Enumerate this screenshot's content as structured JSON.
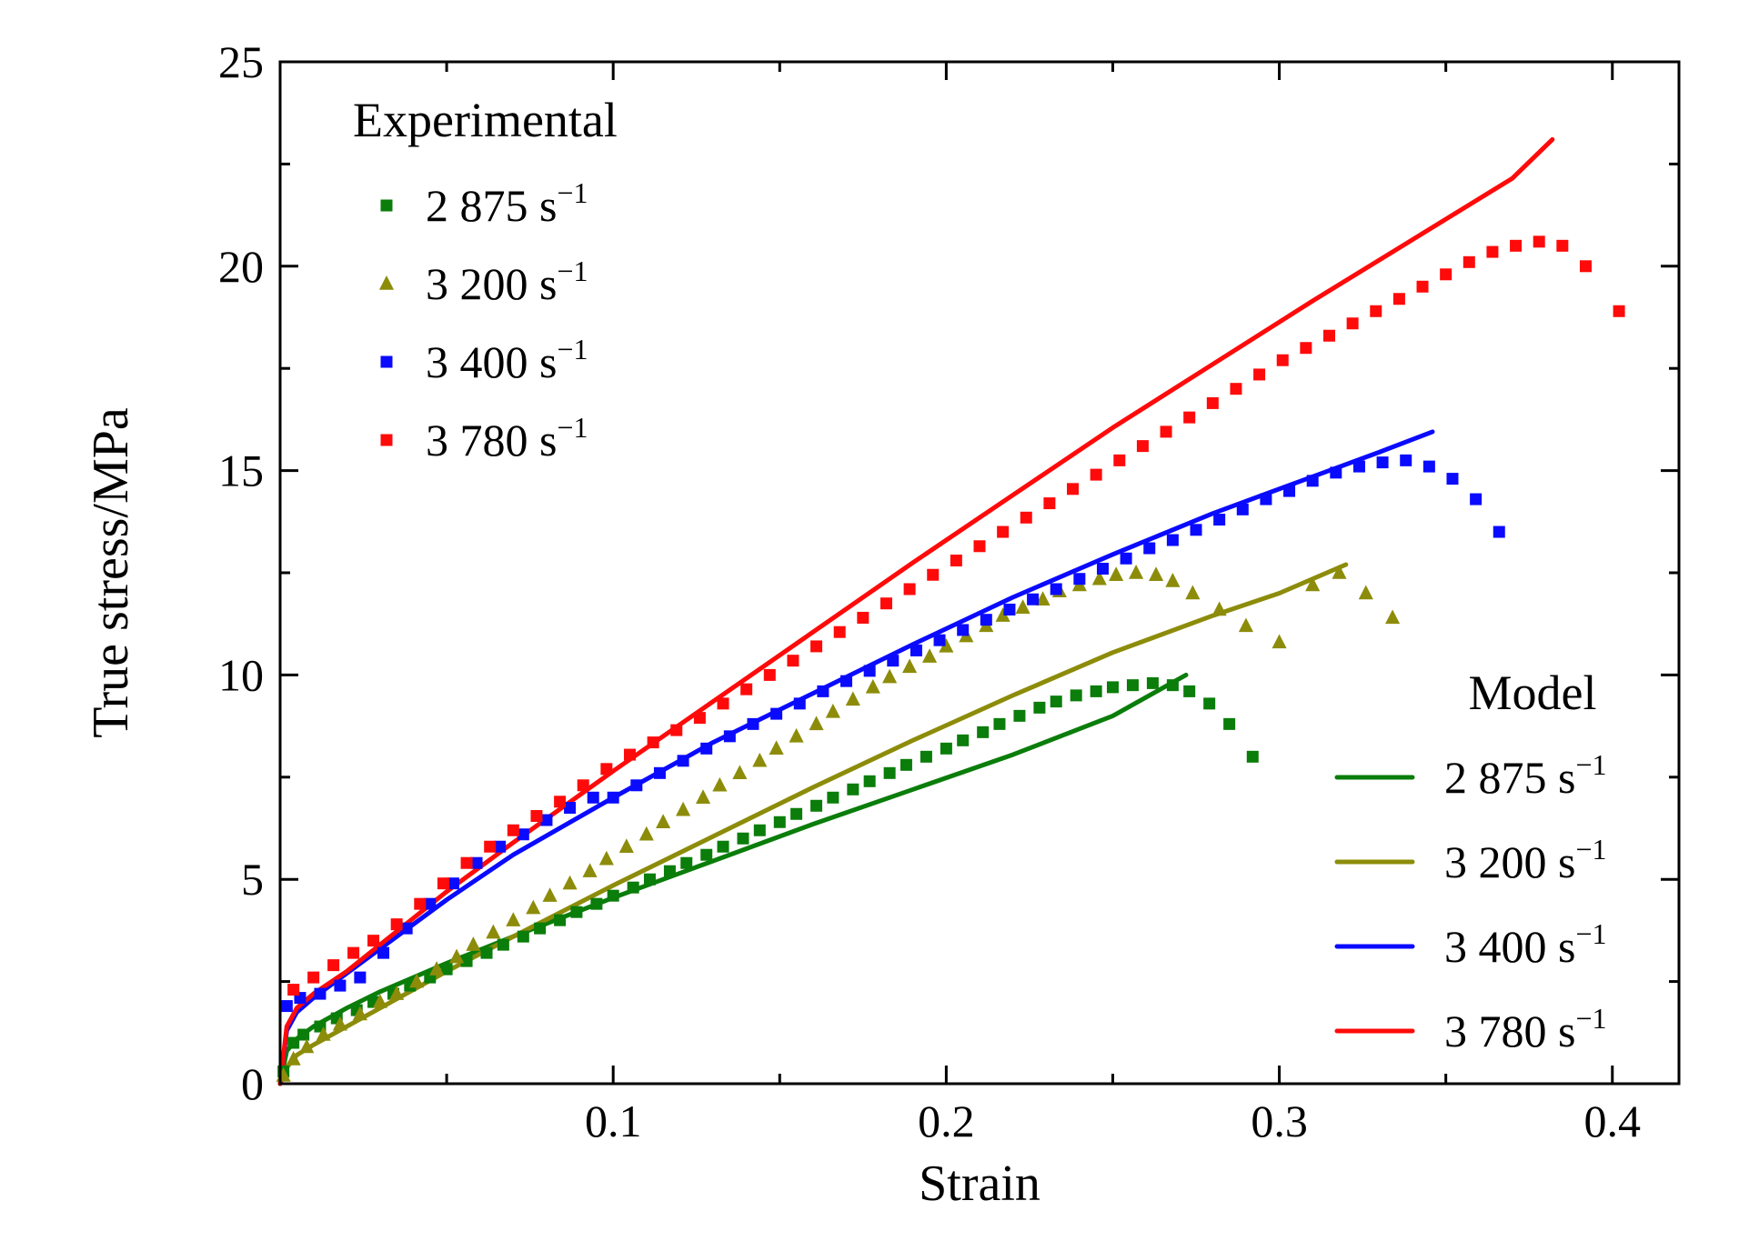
{
  "chart_data": {
    "type": "scatter",
    "xlabel": "Strain",
    "ylabel": "True stress/MPa",
    "xlim": [
      0,
      0.42
    ],
    "ylim": [
      0,
      25
    ],
    "xticks": [
      {
        "value": 0.1,
        "label": "0.1"
      },
      {
        "value": 0.2,
        "label": "0.2"
      },
      {
        "value": 0.3,
        "label": "0.3"
      },
      {
        "value": 0.4,
        "label": "0.4"
      }
    ],
    "yticks": [
      {
        "value": 0,
        "label": "0"
      },
      {
        "value": 5,
        "label": "5"
      },
      {
        "value": 10,
        "label": "10"
      },
      {
        "value": 15,
        "label": "15"
      },
      {
        "value": 20,
        "label": "20"
      },
      {
        "value": 25,
        "label": "25"
      }
    ],
    "grid": false,
    "legends": [
      {
        "title": "Experimental",
        "placement": "top-left",
        "kind": "markers"
      },
      {
        "title": "Model",
        "placement": "bottom-right",
        "kind": "lines"
      }
    ],
    "experimental": [
      {
        "name": "2 875 s",
        "superscript": "−1",
        "color": "#0a7d0a",
        "marker": "square",
        "points": [
          [
            0.001,
            0.3
          ],
          [
            0.004,
            1.0
          ],
          [
            0.007,
            1.2
          ],
          [
            0.012,
            1.4
          ],
          [
            0.017,
            1.6
          ],
          [
            0.023,
            1.8
          ],
          [
            0.028,
            2.0
          ],
          [
            0.034,
            2.2
          ],
          [
            0.039,
            2.4
          ],
          [
            0.045,
            2.6
          ],
          [
            0.05,
            2.8
          ],
          [
            0.056,
            3.0
          ],
          [
            0.062,
            3.2
          ],
          [
            0.067,
            3.4
          ],
          [
            0.073,
            3.6
          ],
          [
            0.078,
            3.8
          ],
          [
            0.084,
            4.0
          ],
          [
            0.089,
            4.2
          ],
          [
            0.095,
            4.4
          ],
          [
            0.1,
            4.6
          ],
          [
            0.106,
            4.8
          ],
          [
            0.111,
            5.0
          ],
          [
            0.117,
            5.2
          ],
          [
            0.122,
            5.4
          ],
          [
            0.128,
            5.6
          ],
          [
            0.133,
            5.8
          ],
          [
            0.139,
            6.0
          ],
          [
            0.144,
            6.2
          ],
          [
            0.15,
            6.4
          ],
          [
            0.155,
            6.6
          ],
          [
            0.161,
            6.8
          ],
          [
            0.166,
            7.0
          ],
          [
            0.172,
            7.2
          ],
          [
            0.177,
            7.4
          ],
          [
            0.183,
            7.6
          ],
          [
            0.188,
            7.8
          ],
          [
            0.194,
            8.0
          ],
          [
            0.2,
            8.2
          ],
          [
            0.205,
            8.4
          ],
          [
            0.211,
            8.6
          ],
          [
            0.216,
            8.8
          ],
          [
            0.222,
            9.0
          ],
          [
            0.228,
            9.2
          ],
          [
            0.233,
            9.35
          ],
          [
            0.239,
            9.5
          ],
          [
            0.245,
            9.6
          ],
          [
            0.25,
            9.7
          ],
          [
            0.256,
            9.75
          ],
          [
            0.262,
            9.8
          ],
          [
            0.268,
            9.75
          ],
          [
            0.273,
            9.6
          ],
          [
            0.279,
            9.3
          ],
          [
            0.285,
            8.8
          ],
          [
            0.292,
            8.0
          ]
        ]
      },
      {
        "name": "3 200 s",
        "superscript": "−1",
        "color": "#8c8c0a",
        "marker": "triangle",
        "points": [
          [
            0.001,
            0.2
          ],
          [
            0.004,
            0.6
          ],
          [
            0.008,
            0.9
          ],
          [
            0.013,
            1.2
          ],
          [
            0.018,
            1.45
          ],
          [
            0.024,
            1.7
          ],
          [
            0.03,
            2.0
          ],
          [
            0.035,
            2.2
          ],
          [
            0.041,
            2.5
          ],
          [
            0.047,
            2.8
          ],
          [
            0.053,
            3.1
          ],
          [
            0.058,
            3.4
          ],
          [
            0.064,
            3.7
          ],
          [
            0.07,
            4.0
          ],
          [
            0.076,
            4.3
          ],
          [
            0.081,
            4.6
          ],
          [
            0.087,
            4.9
          ],
          [
            0.093,
            5.2
          ],
          [
            0.098,
            5.5
          ],
          [
            0.104,
            5.8
          ],
          [
            0.11,
            6.1
          ],
          [
            0.115,
            6.4
          ],
          [
            0.121,
            6.7
          ],
          [
            0.127,
            7.0
          ],
          [
            0.132,
            7.3
          ],
          [
            0.138,
            7.6
          ],
          [
            0.144,
            7.9
          ],
          [
            0.149,
            8.2
          ],
          [
            0.155,
            8.5
          ],
          [
            0.161,
            8.8
          ],
          [
            0.166,
            9.1
          ],
          [
            0.172,
            9.4
          ],
          [
            0.178,
            9.7
          ],
          [
            0.183,
            9.95
          ],
          [
            0.189,
            10.2
          ],
          [
            0.195,
            10.45
          ],
          [
            0.2,
            10.7
          ],
          [
            0.206,
            10.95
          ],
          [
            0.212,
            11.2
          ],
          [
            0.217,
            11.45
          ],
          [
            0.223,
            11.65
          ],
          [
            0.229,
            11.85
          ],
          [
            0.234,
            12.05
          ],
          [
            0.24,
            12.2
          ],
          [
            0.246,
            12.35
          ],
          [
            0.251,
            12.45
          ],
          [
            0.257,
            12.5
          ],
          [
            0.263,
            12.45
          ],
          [
            0.268,
            12.3
          ],
          [
            0.274,
            12.0
          ],
          [
            0.282,
            11.6
          ],
          [
            0.29,
            11.2
          ],
          [
            0.3,
            10.8
          ],
          [
            0.31,
            12.2
          ],
          [
            0.318,
            12.5
          ],
          [
            0.326,
            12.0
          ],
          [
            0.334,
            11.4
          ]
        ]
      },
      {
        "name": "3 400 s",
        "superscript": "−1",
        "color": "#0a0aff",
        "marker": "square",
        "points": [
          [
            0.002,
            1.9
          ],
          [
            0.006,
            2.1
          ],
          [
            0.012,
            2.2
          ],
          [
            0.018,
            2.4
          ],
          [
            0.024,
            2.6
          ],
          [
            0.031,
            3.2
          ],
          [
            0.038,
            3.8
          ],
          [
            0.045,
            4.4
          ],
          [
            0.052,
            4.9
          ],
          [
            0.059,
            5.4
          ],
          [
            0.066,
            5.8
          ],
          [
            0.073,
            6.1
          ],
          [
            0.08,
            6.45
          ],
          [
            0.087,
            6.75
          ],
          [
            0.094,
            7.0
          ],
          [
            0.1,
            7.0
          ],
          [
            0.107,
            7.3
          ],
          [
            0.114,
            7.6
          ],
          [
            0.121,
            7.9
          ],
          [
            0.128,
            8.2
          ],
          [
            0.135,
            8.5
          ],
          [
            0.142,
            8.8
          ],
          [
            0.149,
            9.05
          ],
          [
            0.156,
            9.3
          ],
          [
            0.163,
            9.6
          ],
          [
            0.17,
            9.85
          ],
          [
            0.177,
            10.1
          ],
          [
            0.184,
            10.35
          ],
          [
            0.191,
            10.6
          ],
          [
            0.198,
            10.85
          ],
          [
            0.205,
            11.1
          ],
          [
            0.212,
            11.35
          ],
          [
            0.219,
            11.6
          ],
          [
            0.226,
            11.85
          ],
          [
            0.233,
            12.1
          ],
          [
            0.24,
            12.35
          ],
          [
            0.247,
            12.6
          ],
          [
            0.254,
            12.85
          ],
          [
            0.261,
            13.1
          ],
          [
            0.268,
            13.3
          ],
          [
            0.275,
            13.55
          ],
          [
            0.282,
            13.8
          ],
          [
            0.289,
            14.05
          ],
          [
            0.296,
            14.3
          ],
          [
            0.303,
            14.5
          ],
          [
            0.31,
            14.75
          ],
          [
            0.317,
            14.95
          ],
          [
            0.324,
            15.1
          ],
          [
            0.331,
            15.2
          ],
          [
            0.338,
            15.25
          ],
          [
            0.345,
            15.1
          ],
          [
            0.352,
            14.8
          ],
          [
            0.359,
            14.3
          ],
          [
            0.366,
            13.5
          ]
        ]
      },
      {
        "name": "3 780 s",
        "superscript": "−1",
        "color": "#ff0a0a",
        "marker": "square",
        "points": [
          [
            0.004,
            2.3
          ],
          [
            0.01,
            2.6
          ],
          [
            0.016,
            2.9
          ],
          [
            0.022,
            3.2
          ],
          [
            0.028,
            3.5
          ],
          [
            0.035,
            3.9
          ],
          [
            0.042,
            4.4
          ],
          [
            0.049,
            4.9
          ],
          [
            0.056,
            5.4
          ],
          [
            0.063,
            5.8
          ],
          [
            0.07,
            6.2
          ],
          [
            0.077,
            6.55
          ],
          [
            0.084,
            6.9
          ],
          [
            0.091,
            7.3
          ],
          [
            0.098,
            7.7
          ],
          [
            0.105,
            8.05
          ],
          [
            0.112,
            8.35
          ],
          [
            0.119,
            8.65
          ],
          [
            0.126,
            8.95
          ],
          [
            0.133,
            9.3
          ],
          [
            0.14,
            9.65
          ],
          [
            0.147,
            10.0
          ],
          [
            0.154,
            10.35
          ],
          [
            0.161,
            10.7
          ],
          [
            0.168,
            11.05
          ],
          [
            0.175,
            11.4
          ],
          [
            0.182,
            11.75
          ],
          [
            0.189,
            12.1
          ],
          [
            0.196,
            12.45
          ],
          [
            0.203,
            12.8
          ],
          [
            0.21,
            13.15
          ],
          [
            0.217,
            13.5
          ],
          [
            0.224,
            13.85
          ],
          [
            0.231,
            14.2
          ],
          [
            0.238,
            14.55
          ],
          [
            0.245,
            14.9
          ],
          [
            0.252,
            15.25
          ],
          [
            0.259,
            15.6
          ],
          [
            0.266,
            15.95
          ],
          [
            0.273,
            16.3
          ],
          [
            0.28,
            16.65
          ],
          [
            0.287,
            17.0
          ],
          [
            0.294,
            17.35
          ],
          [
            0.301,
            17.7
          ],
          [
            0.308,
            18.0
          ],
          [
            0.315,
            18.3
          ],
          [
            0.322,
            18.6
          ],
          [
            0.329,
            18.9
          ],
          [
            0.336,
            19.2
          ],
          [
            0.343,
            19.5
          ],
          [
            0.35,
            19.8
          ],
          [
            0.357,
            20.1
          ],
          [
            0.364,
            20.35
          ],
          [
            0.371,
            20.5
          ],
          [
            0.378,
            20.6
          ],
          [
            0.385,
            20.5
          ],
          [
            0.392,
            20.0
          ],
          [
            0.402,
            18.9
          ]
        ]
      }
    ],
    "model": [
      {
        "name": "2 875 s",
        "superscript": "−1",
        "color": "#0a7d0a",
        "points": [
          [
            0,
            0
          ],
          [
            0.002,
            0.8
          ],
          [
            0.005,
            1.1
          ],
          [
            0.01,
            1.4
          ],
          [
            0.02,
            1.85
          ],
          [
            0.03,
            2.25
          ],
          [
            0.05,
            2.95
          ],
          [
            0.07,
            3.6
          ],
          [
            0.1,
            4.55
          ],
          [
            0.13,
            5.45
          ],
          [
            0.16,
            6.35
          ],
          [
            0.19,
            7.2
          ],
          [
            0.22,
            8.05
          ],
          [
            0.25,
            9.0
          ],
          [
            0.272,
            10.0
          ]
        ]
      },
      {
        "name": "3 200 s",
        "superscript": "−1",
        "color": "#8c8c0a",
        "points": [
          [
            0,
            0
          ],
          [
            0.002,
            0.4
          ],
          [
            0.005,
            0.7
          ],
          [
            0.01,
            0.95
          ],
          [
            0.02,
            1.4
          ],
          [
            0.03,
            1.85
          ],
          [
            0.05,
            2.75
          ],
          [
            0.07,
            3.6
          ],
          [
            0.1,
            4.85
          ],
          [
            0.13,
            6.05
          ],
          [
            0.16,
            7.25
          ],
          [
            0.19,
            8.4
          ],
          [
            0.22,
            9.5
          ],
          [
            0.25,
            10.55
          ],
          [
            0.28,
            11.45
          ],
          [
            0.3,
            12.0
          ],
          [
            0.32,
            12.7
          ]
        ]
      },
      {
        "name": "3 400 s",
        "superscript": "−1",
        "color": "#0a0aff",
        "points": [
          [
            0,
            0
          ],
          [
            0.002,
            1.3
          ],
          [
            0.005,
            1.75
          ],
          [
            0.01,
            2.1
          ],
          [
            0.02,
            2.7
          ],
          [
            0.03,
            3.3
          ],
          [
            0.05,
            4.5
          ],
          [
            0.07,
            5.6
          ],
          [
            0.1,
            7.0
          ],
          [
            0.13,
            8.35
          ],
          [
            0.16,
            9.55
          ],
          [
            0.19,
            10.75
          ],
          [
            0.22,
            11.9
          ],
          [
            0.25,
            12.95
          ],
          [
            0.28,
            13.95
          ],
          [
            0.31,
            14.85
          ],
          [
            0.33,
            15.45
          ],
          [
            0.346,
            15.95
          ]
        ]
      },
      {
        "name": "3 780 s",
        "superscript": "−1",
        "color": "#ff0a0a",
        "points": [
          [
            0,
            0
          ],
          [
            0.002,
            1.4
          ],
          [
            0.005,
            1.85
          ],
          [
            0.01,
            2.2
          ],
          [
            0.02,
            2.75
          ],
          [
            0.03,
            3.4
          ],
          [
            0.05,
            4.7
          ],
          [
            0.07,
            5.9
          ],
          [
            0.1,
            7.65
          ],
          [
            0.13,
            9.35
          ],
          [
            0.16,
            11.05
          ],
          [
            0.19,
            12.75
          ],
          [
            0.22,
            14.4
          ],
          [
            0.25,
            16.05
          ],
          [
            0.28,
            17.6
          ],
          [
            0.31,
            19.15
          ],
          [
            0.34,
            20.65
          ],
          [
            0.37,
            22.15
          ],
          [
            0.382,
            23.1
          ]
        ]
      }
    ]
  }
}
